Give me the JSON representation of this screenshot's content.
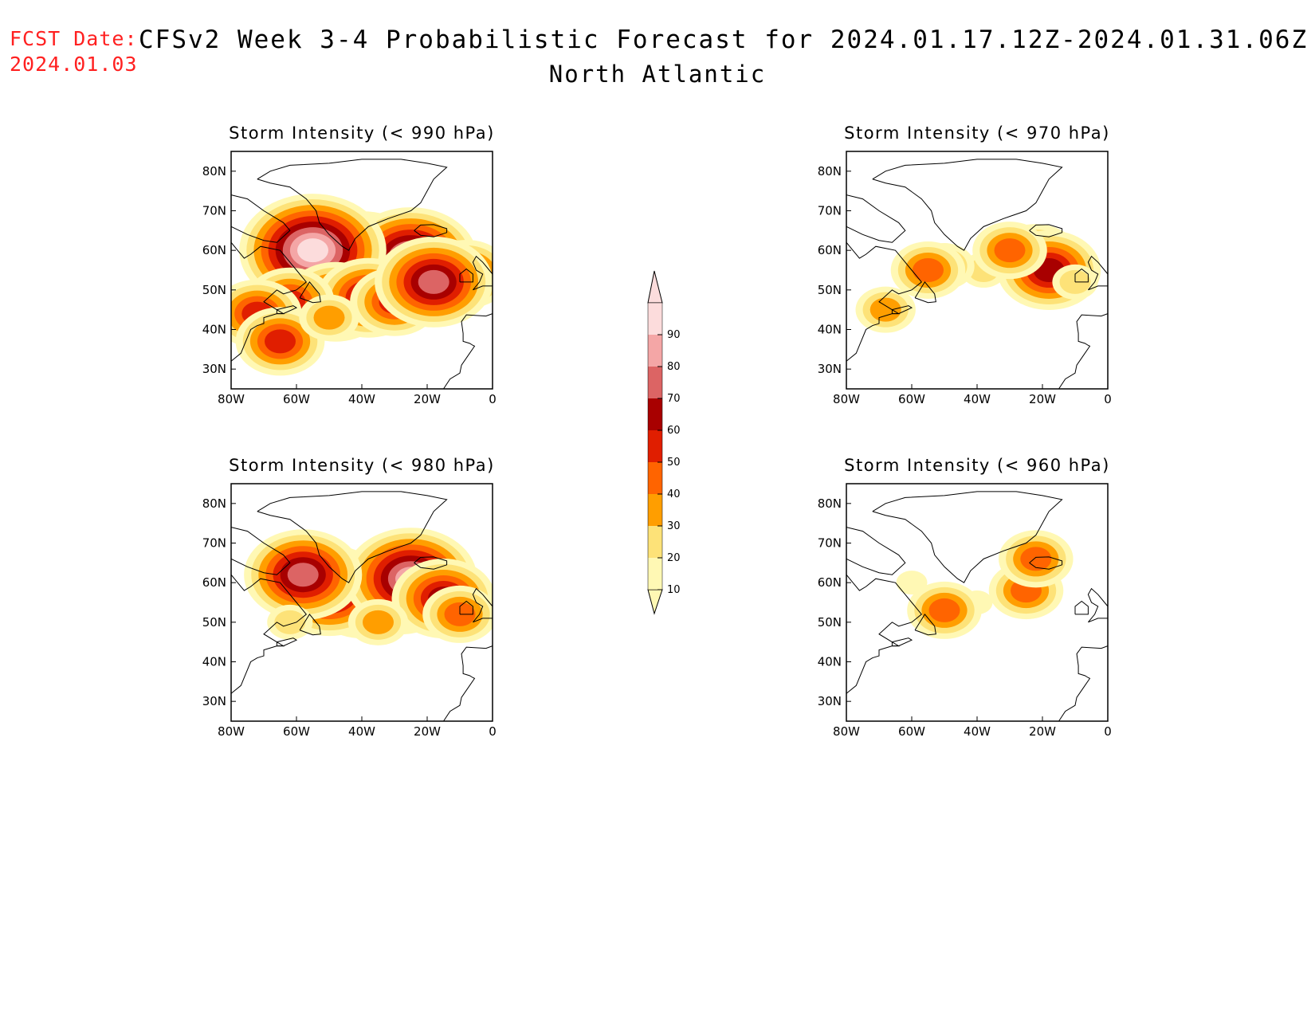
{
  "header": {
    "fcst_label": "FCST Date:",
    "fcst_date": "2024.01.03",
    "title": "CFSv2 Week 3-4 Probabilistic Forecast for 2024.01.17.12Z-2024.01.31.06Z",
    "region": "North Atlantic"
  },
  "colorbar": {
    "levels": [
      "10",
      "20",
      "30",
      "40",
      "50",
      "60",
      "70",
      "80",
      "90"
    ],
    "colors": [
      "#fff8b4",
      "#fde278",
      "#ff9e00",
      "#ff6400",
      "#e01e00",
      "#a80000",
      "#dc6464",
      "#f4a6a6",
      "#fcdcdc"
    ]
  },
  "axes": {
    "lon_ticks": [
      "80W",
      "60W",
      "40W",
      "20W",
      "0"
    ],
    "lat_ticks": [
      "80N",
      "70N",
      "60N",
      "50N",
      "40N",
      "30N"
    ],
    "lon_range": [
      -80,
      0
    ],
    "lat_range": [
      25,
      85
    ]
  },
  "panels": [
    {
      "title": "Storm Intensity (< 990 hPa)",
      "blobs": [
        {
          "lon": -40,
          "lat": 57,
          "level": 7
        },
        {
          "lon": -25,
          "lat": 58,
          "level": 7
        },
        {
          "lon": -55,
          "lat": 60,
          "level": 8
        },
        {
          "lon": -48,
          "lat": 47,
          "level": 5
        },
        {
          "lon": -38,
          "lat": 48,
          "level": 5
        },
        {
          "lon": -62,
          "lat": 47,
          "level": 4
        },
        {
          "lon": -72,
          "lat": 44,
          "level": 4
        },
        {
          "lon": -30,
          "lat": 47,
          "level": 4
        },
        {
          "lon": -8,
          "lat": 54,
          "level": 4
        },
        {
          "lon": -18,
          "lat": 52,
          "level": 6
        },
        {
          "lon": -65,
          "lat": 37,
          "level": 4
        },
        {
          "lon": -50,
          "lat": 43,
          "level": 2
        }
      ]
    },
    {
      "title": "Storm Intensity (< 970 hPa)",
      "blobs": [
        {
          "lon": -38,
          "lat": 55,
          "level": 1
        },
        {
          "lon": -22,
          "lat": 58,
          "level": 4
        },
        {
          "lon": -18,
          "lat": 55,
          "level": 5
        },
        {
          "lon": -30,
          "lat": 60,
          "level": 3
        },
        {
          "lon": -50,
          "lat": 56,
          "level": 2
        },
        {
          "lon": -55,
          "lat": 55,
          "level": 3
        },
        {
          "lon": -10,
          "lat": 52,
          "level": 1
        },
        {
          "lon": -68,
          "lat": 45,
          "level": 2
        }
      ]
    },
    {
      "title": "Storm Intensity (< 980 hPa)",
      "blobs": [
        {
          "lon": -40,
          "lat": 56,
          "level": 5
        },
        {
          "lon": -28,
          "lat": 57,
          "level": 5
        },
        {
          "lon": -50,
          "lat": 58,
          "level": 6
        },
        {
          "lon": -25,
          "lat": 61,
          "level": 7
        },
        {
          "lon": -15,
          "lat": 56,
          "level": 5
        },
        {
          "lon": -58,
          "lat": 62,
          "level": 6
        },
        {
          "lon": -35,
          "lat": 50,
          "level": 2
        },
        {
          "lon": -62,
          "lat": 50,
          "level": 1
        },
        {
          "lon": -10,
          "lat": 52,
          "level": 3
        }
      ]
    },
    {
      "title": "Storm Intensity (< 960 hPa)",
      "blobs": [
        {
          "lon": -40,
          "lat": 55,
          "level": 0
        },
        {
          "lon": -28,
          "lat": 57,
          "level": 1
        },
        {
          "lon": -25,
          "lat": 58,
          "level": 3
        },
        {
          "lon": -52,
          "lat": 54,
          "level": 0
        },
        {
          "lon": -50,
          "lat": 53,
          "level": 3
        },
        {
          "lon": -22,
          "lat": 66,
          "level": 3
        },
        {
          "lon": -60,
          "lat": 60,
          "level": 0
        }
      ]
    }
  ]
}
